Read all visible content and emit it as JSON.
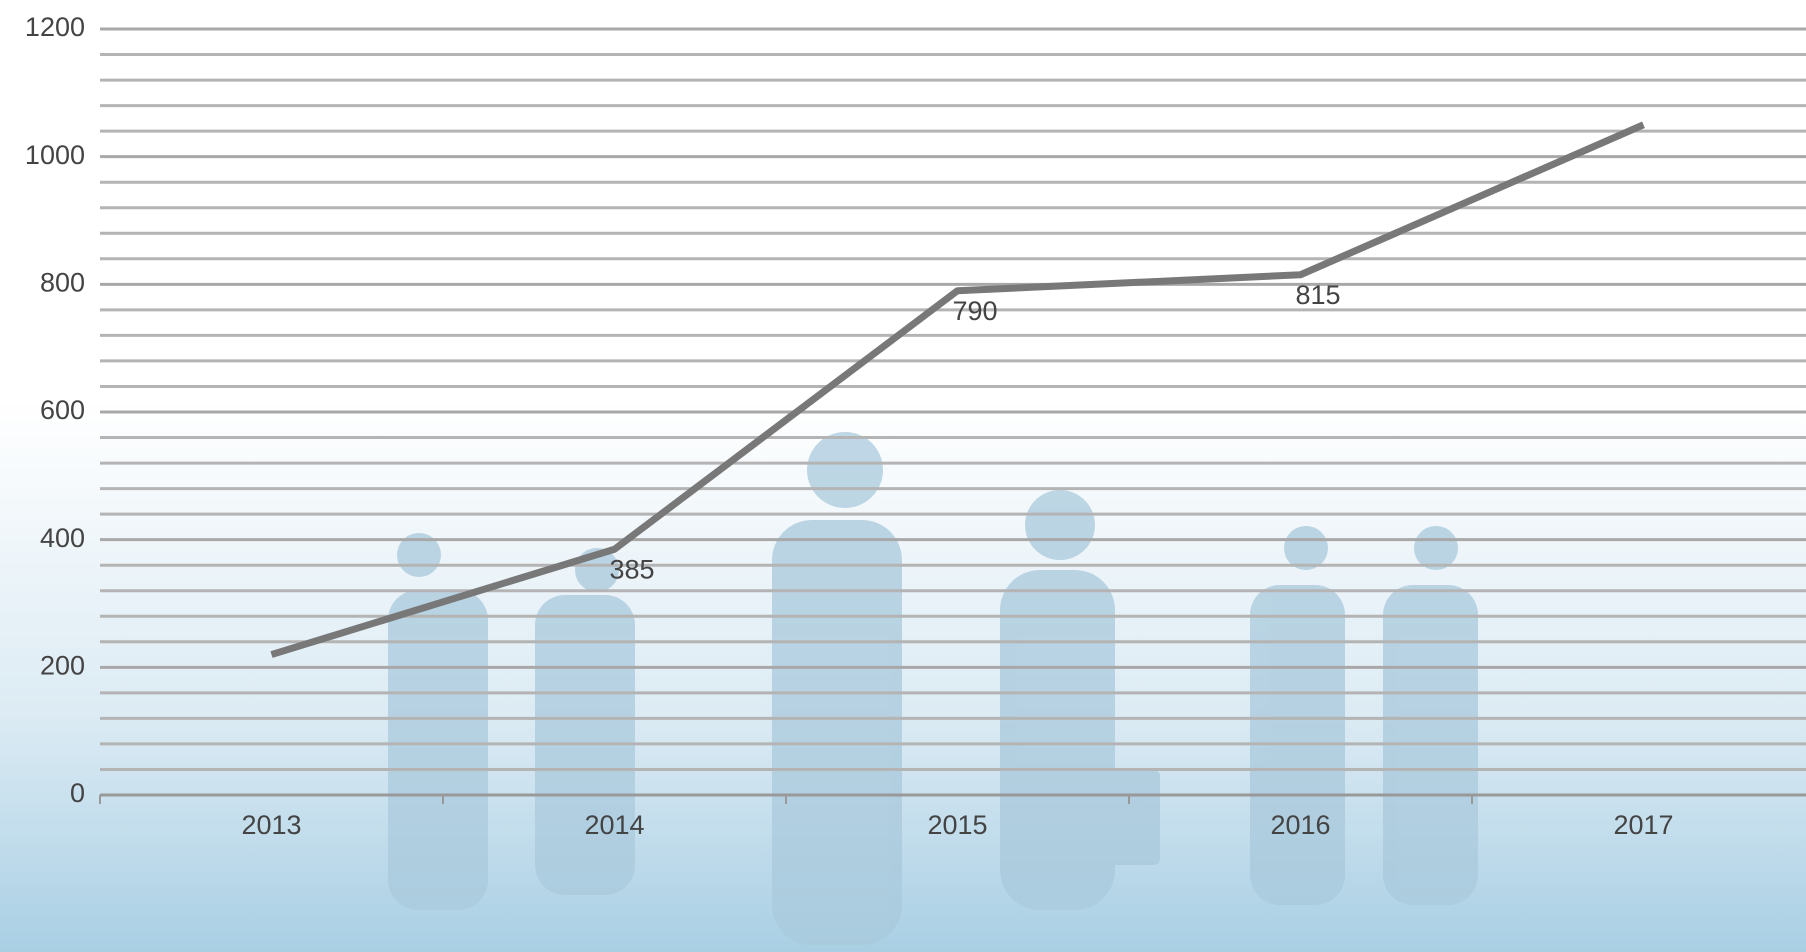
{
  "chart_data": {
    "type": "line",
    "categories": [
      "2013",
      "2014",
      "2015",
      "2016",
      "2017"
    ],
    "series": [
      {
        "color": "#787878",
        "values": [
          220,
          385,
          790,
          815,
          1050
        ]
      }
    ],
    "data_labels": [
      false,
      true,
      true,
      true,
      false
    ],
    "ylim": [
      0,
      1200
    ],
    "yticks": [
      0,
      200,
      400,
      600,
      800,
      1000,
      1200
    ],
    "minor_yticks": [
      40,
      80,
      120,
      160,
      240,
      280,
      320,
      360,
      440,
      480,
      520,
      560,
      640,
      680,
      720,
      760,
      840,
      880,
      920,
      960,
      1040,
      1080,
      1120,
      1160
    ],
    "grid": true
  }
}
